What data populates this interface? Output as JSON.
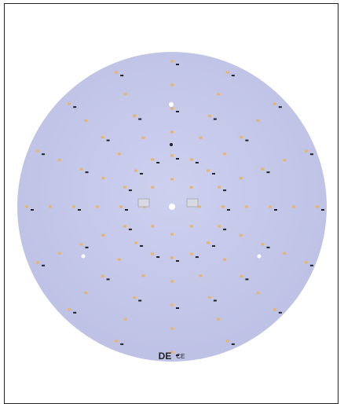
{
  "board": {
    "marks": [
      "DE",
      "CE"
    ]
  }
}
